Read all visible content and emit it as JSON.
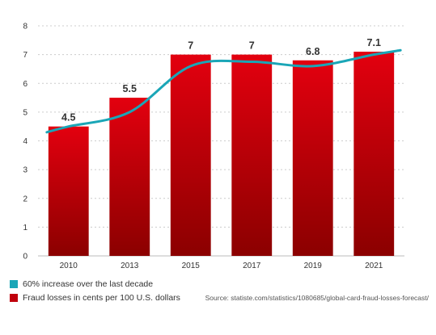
{
  "chart_data": {
    "type": "bar",
    "categories": [
      "2010",
      "2013",
      "2015",
      "2017",
      "2019",
      "2021"
    ],
    "series": [
      {
        "name": "Fraud losses in cents per 100 U.S. dollars",
        "type": "bar",
        "values": [
          4.5,
          5.5,
          7,
          7,
          6.8,
          7.1
        ],
        "data_labels": [
          "4.5",
          "5.5",
          "7",
          "7",
          "6.8",
          "7.1"
        ]
      },
      {
        "name": "60% increase over the last decade",
        "type": "line",
        "values": [
          4.5,
          5.0,
          6.6,
          6.75,
          6.6,
          7.0
        ]
      }
    ],
    "ylim": [
      0,
      8
    ],
    "yticks": [
      "0",
      "1",
      "2",
      "3",
      "4",
      "5",
      "6",
      "7",
      "8"
    ],
    "grid": true,
    "legend_position": "bottom-left",
    "colors": {
      "bar_top": "#e3000f",
      "bar_bottom": "#8b0000",
      "line": "#1aa6b7"
    }
  },
  "legend": {
    "line_label": "60% increase over the last decade",
    "bar_label": "Fraud losses in cents per 100 U.S. dollars"
  },
  "source": "Source: statiste.com/statistics/1080685/global-card-fraud-losses-forecast/"
}
